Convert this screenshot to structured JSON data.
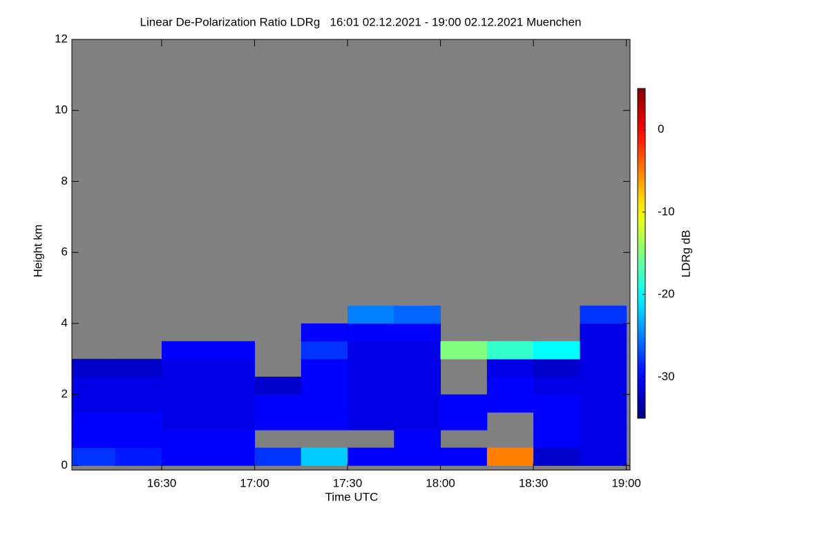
{
  "chart_data": {
    "type": "heatmap",
    "title": "Linear De-Polarization Ratio LDRg   16:01 02.12.2021 - 19:00 02.12.2021 Muenchen",
    "x_label": "Time UTC",
    "y_label": "Height km",
    "colorbar_label": "LDRg dB",
    "colormap": "jet",
    "nan_color": "#808080",
    "x": [
      16.125,
      16.375,
      16.625,
      16.875,
      17.125,
      17.375,
      17.625,
      17.875,
      18.125,
      18.375,
      18.625,
      18.875
    ],
    "y": [
      0.25,
      0.75,
      1.25,
      1.75,
      2.25,
      2.75,
      3.25,
      3.75,
      4.25
    ],
    "z": [
      [
        -28,
        -29,
        -30,
        -30,
        -28,
        -22,
        -30,
        -30,
        -30,
        -5,
        -32,
        -31
      ],
      [
        -30,
        -30,
        -30,
        -30,
        null,
        null,
        null,
        -30,
        null,
        null,
        -30,
        -31
      ],
      [
        -30,
        -30,
        -31,
        -31,
        -30,
        -30,
        -31,
        -31,
        -30,
        null,
        -30,
        -31
      ],
      [
        -31,
        -31,
        -31,
        -31,
        -30,
        -30,
        -31,
        -31,
        -30,
        -30,
        -30,
        -31
      ],
      [
        -31,
        -31,
        -31,
        -31,
        -32,
        -30,
        -31,
        -31,
        null,
        -30,
        -31,
        -31
      ],
      [
        -32,
        -32,
        -31,
        -31,
        null,
        -30,
        -31,
        -31,
        null,
        -31,
        -32,
        -31
      ],
      [
        null,
        null,
        -30,
        -30,
        null,
        -28,
        -31,
        -31,
        -15,
        -18,
        -20,
        -31
      ],
      [
        null,
        null,
        null,
        null,
        null,
        -30,
        -30,
        -30,
        null,
        null,
        null,
        -31
      ],
      [
        null,
        null,
        null,
        null,
        null,
        null,
        -25,
        -26,
        null,
        null,
        null,
        -28
      ]
    ],
    "xlim": [
      16.0167,
      19.02
    ],
    "ylim": [
      -0.13,
      12
    ],
    "zlim": [
      -35,
      5
    ],
    "xticks": [
      {
        "value": 16.5,
        "label": "16:30"
      },
      {
        "value": 17,
        "label": "17:00"
      },
      {
        "value": 17.5,
        "label": "17:30"
      },
      {
        "value": 18,
        "label": "18:00"
      },
      {
        "value": 18.5,
        "label": "18:30"
      },
      {
        "value": 19,
        "label": "19:00"
      }
    ],
    "yticks": [
      0,
      2,
      4,
      6,
      8,
      10,
      12
    ],
    "zticks": [
      0,
      -10,
      -20,
      -30
    ]
  }
}
